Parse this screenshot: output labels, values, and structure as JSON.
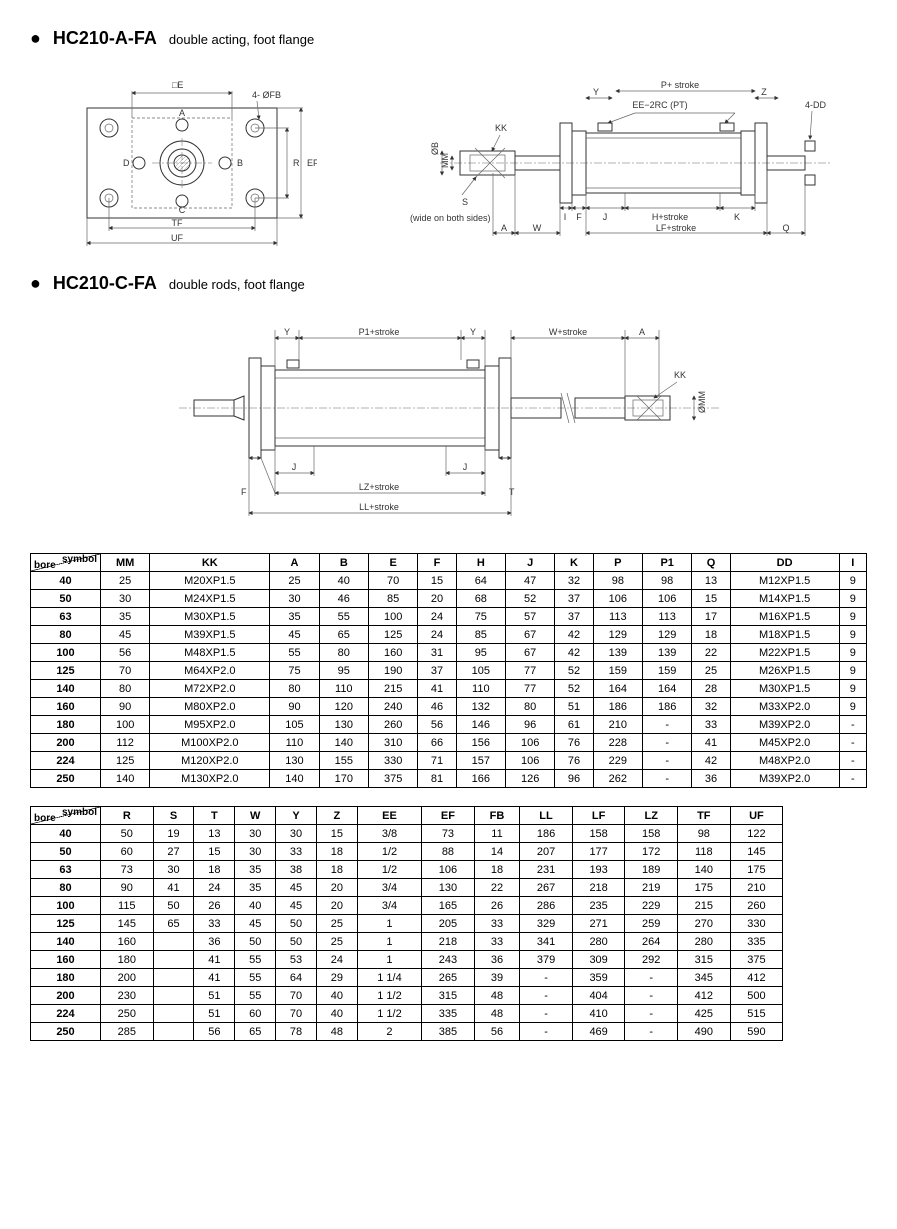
{
  "sections": {
    "a": {
      "code": "HC210-A-FA",
      "desc": "double acting, foot flange"
    },
    "c": {
      "code": "HC210-C-FA",
      "desc": "double rods, foot flange"
    }
  },
  "diagram_labels": {
    "sqE": "□E",
    "fourFB": "4- ØFB",
    "TF": "TF",
    "UF": "UF",
    "R": "R",
    "EF": "EF",
    "A": "A",
    "B": "B",
    "C": "C",
    "D": "D",
    "KK": "KK",
    "diaB": "ØB",
    "MM": "MM",
    "S": "S",
    "wide": "(wide on both sides)",
    "Y": "Y",
    "Pstroke": "P+ stroke",
    "Z": "Z",
    "EE2RC": "EE−2RC (PT)",
    "fourDD": "4-DD",
    "I": "I",
    "F": "F",
    "J": "J",
    "Hstroke": "H+stroke",
    "K": "K",
    "Aa": "A",
    "W": "W",
    "LFstroke": "LF+stroke",
    "Q": "Q",
    "P1stroke": "P1+stroke",
    "Wstroke": "W+stroke",
    "LZstroke": "LZ+stroke",
    "LLstroke": "LL+stroke",
    "T": "T",
    "diaMM": "ØMM"
  },
  "table1": {
    "corner_top": "symbol",
    "corner_bottom": "bore",
    "headers": [
      "MM",
      "KK",
      "A",
      "B",
      "E",
      "F",
      "H",
      "J",
      "K",
      "P",
      "P1",
      "Q",
      "DD",
      "I"
    ],
    "rows": [
      [
        "40",
        "25",
        "M20XP1.5",
        "25",
        "40",
        "70",
        "15",
        "64",
        "47",
        "32",
        "98",
        "98",
        "13",
        "M12XP1.5",
        "9"
      ],
      [
        "50",
        "30",
        "M24XP1.5",
        "30",
        "46",
        "85",
        "20",
        "68",
        "52",
        "37",
        "106",
        "106",
        "15",
        "M14XP1.5",
        "9"
      ],
      [
        "63",
        "35",
        "M30XP1.5",
        "35",
        "55",
        "100",
        "24",
        "75",
        "57",
        "37",
        "113",
        "113",
        "17",
        "M16XP1.5",
        "9"
      ],
      [
        "80",
        "45",
        "M39XP1.5",
        "45",
        "65",
        "125",
        "24",
        "85",
        "67",
        "42",
        "129",
        "129",
        "18",
        "M18XP1.5",
        "9"
      ],
      [
        "100",
        "56",
        "M48XP1.5",
        "55",
        "80",
        "160",
        "31",
        "95",
        "67",
        "42",
        "139",
        "139",
        "22",
        "M22XP1.5",
        "9"
      ],
      [
        "125",
        "70",
        "M64XP2.0",
        "75",
        "95",
        "190",
        "37",
        "105",
        "77",
        "52",
        "159",
        "159",
        "25",
        "M26XP1.5",
        "9"
      ],
      [
        "140",
        "80",
        "M72XP2.0",
        "80",
        "110",
        "215",
        "41",
        "110",
        "77",
        "52",
        "164",
        "164",
        "28",
        "M30XP1.5",
        "9"
      ],
      [
        "160",
        "90",
        "M80XP2.0",
        "90",
        "120",
        "240",
        "46",
        "132",
        "80",
        "51",
        "186",
        "186",
        "32",
        "M33XP2.0",
        "9"
      ],
      [
        "180",
        "100",
        "M95XP2.0",
        "105",
        "130",
        "260",
        "56",
        "146",
        "96",
        "61",
        "210",
        "-",
        "33",
        "M39XP2.0",
        "-"
      ],
      [
        "200",
        "112",
        "M100XP2.0",
        "110",
        "140",
        "310",
        "66",
        "156",
        "106",
        "76",
        "228",
        "-",
        "41",
        "M45XP2.0",
        "-"
      ],
      [
        "224",
        "125",
        "M120XP2.0",
        "130",
        "155",
        "330",
        "71",
        "157",
        "106",
        "76",
        "229",
        "-",
        "42",
        "M48XP2.0",
        "-"
      ],
      [
        "250",
        "140",
        "M130XP2.0",
        "140",
        "170",
        "375",
        "81",
        "166",
        "126",
        "96",
        "262",
        "-",
        "36",
        "M39XP2.0",
        "-"
      ]
    ]
  },
  "table2": {
    "corner_top": "symbol",
    "corner_bottom": "bore",
    "headers": [
      "R",
      "S",
      "T",
      "W",
      "Y",
      "Z",
      "EE",
      "EF",
      "FB",
      "LL",
      "LF",
      "LZ",
      "TF",
      "UF"
    ],
    "rows": [
      [
        "40",
        "50",
        "19",
        "13",
        "30",
        "30",
        "15",
        "3/8",
        "73",
        "11",
        "186",
        "158",
        "158",
        "98",
        "122"
      ],
      [
        "50",
        "60",
        "27",
        "15",
        "30",
        "33",
        "18",
        "1/2",
        "88",
        "14",
        "207",
        "177",
        "172",
        "118",
        "145"
      ],
      [
        "63",
        "73",
        "30",
        "18",
        "35",
        "38",
        "18",
        "1/2",
        "106",
        "18",
        "231",
        "193",
        "189",
        "140",
        "175"
      ],
      [
        "80",
        "90",
        "41",
        "24",
        "35",
        "45",
        "20",
        "3/4",
        "130",
        "22",
        "267",
        "218",
        "219",
        "175",
        "210"
      ],
      [
        "100",
        "115",
        "50",
        "26",
        "40",
        "45",
        "20",
        "3/4",
        "165",
        "26",
        "286",
        "235",
        "229",
        "215",
        "260"
      ],
      [
        "125",
        "145",
        "65",
        "33",
        "45",
        "50",
        "25",
        "1",
        "205",
        "33",
        "329",
        "271",
        "259",
        "270",
        "330"
      ],
      [
        "140",
        "160",
        "",
        "36",
        "50",
        "50",
        "25",
        "1",
        "218",
        "33",
        "341",
        "280",
        "264",
        "280",
        "335"
      ],
      [
        "160",
        "180",
        "",
        "41",
        "55",
        "53",
        "24",
        "1",
        "243",
        "36",
        "379",
        "309",
        "292",
        "315",
        "375"
      ],
      [
        "180",
        "200",
        "",
        "41",
        "55",
        "64",
        "29",
        "1 1/4",
        "265",
        "39",
        "-",
        "359",
        "-",
        "345",
        "412"
      ],
      [
        "200",
        "230",
        "",
        "51",
        "55",
        "70",
        "40",
        "1 1/2",
        "315",
        "48",
        "-",
        "404",
        "-",
        "412",
        "500"
      ],
      [
        "224",
        "250",
        "",
        "51",
        "60",
        "70",
        "40",
        "1 1/2",
        "335",
        "48",
        "-",
        "410",
        "-",
        "425",
        "515"
      ],
      [
        "250",
        "285",
        "",
        "56",
        "65",
        "78",
        "48",
        "2",
        "385",
        "56",
        "-",
        "469",
        "-",
        "490",
        "590"
      ]
    ]
  },
  "styling": {
    "border_color": "#000000",
    "bg_color": "#ffffff",
    "header_fontsize": 11,
    "cell_fontsize": 11
  }
}
